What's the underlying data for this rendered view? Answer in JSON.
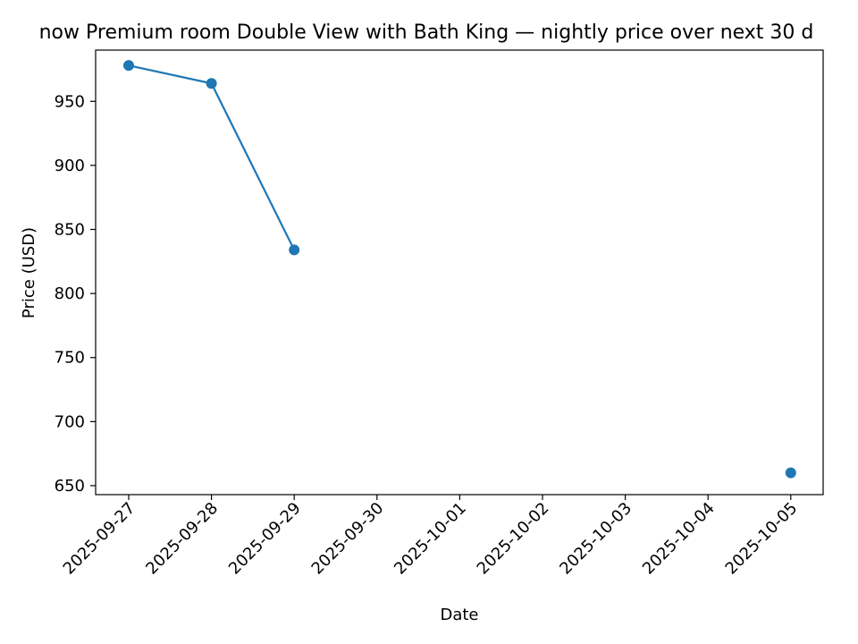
{
  "chart_data": {
    "type": "line",
    "title": "now Premium room Double View with Bath King — nightly price over next 30 d",
    "xlabel": "Date",
    "ylabel": "Price (USD)",
    "x_ticks": [
      "2025-09-27",
      "2025-09-28",
      "2025-09-29",
      "2025-09-30",
      "2025-10-01",
      "2025-10-02",
      "2025-10-03",
      "2025-10-04",
      "2025-10-05"
    ],
    "y_ticks": [
      650,
      700,
      750,
      800,
      850,
      900,
      950
    ],
    "ylim": [
      643,
      990
    ],
    "series": [
      {
        "color": "#1f77b4",
        "points": [
          {
            "x": "2025-09-27",
            "y": 978
          },
          {
            "x": "2025-09-28",
            "y": 964
          },
          {
            "x": "2025-09-29",
            "y": 834
          },
          {
            "x": "2025-09-30",
            "y": null
          },
          {
            "x": "2025-10-01",
            "y": null
          },
          {
            "x": "2025-10-02",
            "y": null
          },
          {
            "x": "2025-10-03",
            "y": null
          },
          {
            "x": "2025-10-04",
            "y": null
          },
          {
            "x": "2025-10-05",
            "y": 660
          }
        ]
      }
    ],
    "grid": false,
    "legend": false
  }
}
